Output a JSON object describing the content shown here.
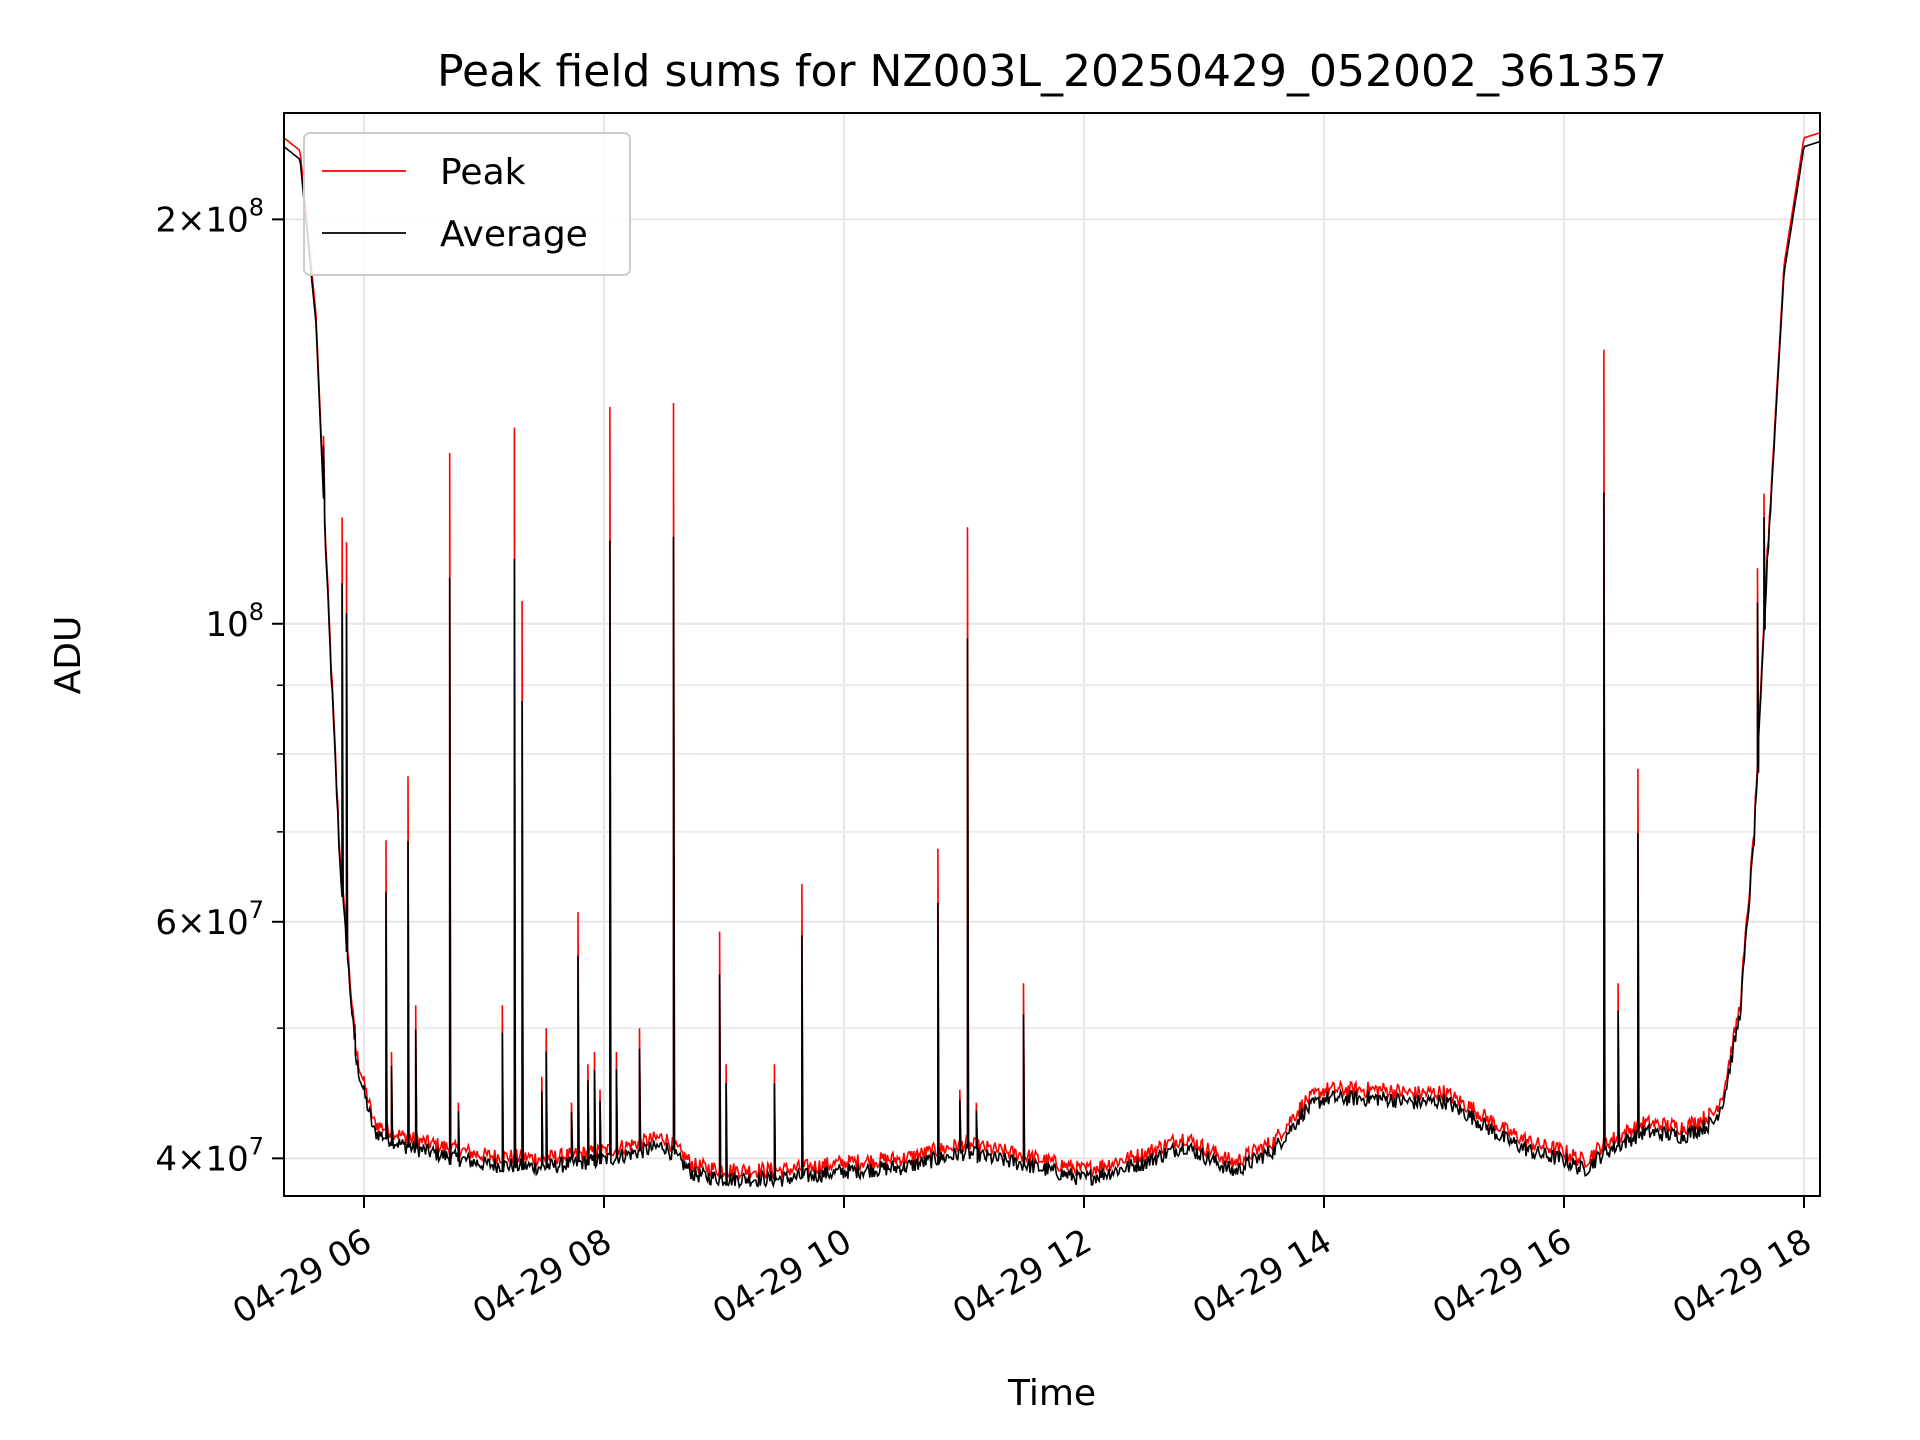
{
  "chart_data": {
    "type": "line",
    "title": "Peak field sums for NZ003L_20250429_052002_361357",
    "xlabel": "Time",
    "ylabel": "ADU",
    "y_scale": "log",
    "ylim": [
      37500000,
      240000000
    ],
    "xlim": [
      "2025-04-29 05:20",
      "2025-04-29 18:08"
    ],
    "grid": true,
    "legend": "top-left",
    "x_ticks": [
      {
        "value": "2025-04-29 06:00",
        "label": "04-29 06"
      },
      {
        "value": "2025-04-29 08:00",
        "label": "04-29 08"
      },
      {
        "value": "2025-04-29 10:00",
        "label": "04-29 10"
      },
      {
        "value": "2025-04-29 12:00",
        "label": "04-29 12"
      },
      {
        "value": "2025-04-29 14:00",
        "label": "04-29 14"
      },
      {
        "value": "2025-04-29 16:00",
        "label": "04-29 16"
      },
      {
        "value": "2025-04-29 18:00",
        "label": "04-29 18"
      }
    ],
    "y_ticks": [
      {
        "value": 40000000,
        "mantissa": "4",
        "exp": "7"
      },
      {
        "value": 60000000,
        "mantissa": "6",
        "exp": "7"
      },
      {
        "value": 100000000,
        "mantissa": "",
        "exp": "8"
      },
      {
        "value": 200000000,
        "mantissa": "2",
        "exp": "8"
      }
    ],
    "y_minor_ticks": [
      50000000,
      70000000,
      80000000,
      90000000
    ],
    "series": [
      {
        "name": "Peak",
        "color": "#ff0000",
        "x": [
          "2025-04-29 05:20",
          "2025-04-29 05:28",
          "2025-04-29 05:36",
          "2025-04-29 05:42",
          "2025-04-29 05:48",
          "2025-04-29 05:56",
          "2025-04-29 06:05",
          "2025-04-29 06:20",
          "2025-04-29 06:40",
          "2025-04-29 07:00",
          "2025-04-29 07:30",
          "2025-04-29 08:00",
          "2025-04-29 08:30",
          "2025-04-29 08:45",
          "2025-04-29 09:00",
          "2025-04-29 09:30",
          "2025-04-29 10:00",
          "2025-04-29 10:30",
          "2025-04-29 11:00",
          "2025-04-29 11:30",
          "2025-04-29 12:00",
          "2025-04-29 12:30",
          "2025-04-29 12:50",
          "2025-04-29 13:15",
          "2025-04-29 13:35",
          "2025-04-29 13:50",
          "2025-04-29 14:00",
          "2025-04-29 14:30",
          "2025-04-29 14:45",
          "2025-04-29 15:00",
          "2025-04-29 15:15",
          "2025-04-29 15:30",
          "2025-04-29 15:45",
          "2025-04-29 16:00",
          "2025-04-29 16:10",
          "2025-04-29 16:20",
          "2025-04-29 16:40",
          "2025-04-29 17:00",
          "2025-04-29 17:15",
          "2025-04-29 17:20",
          "2025-04-29 17:28",
          "2025-04-29 17:35",
          "2025-04-29 17:42",
          "2025-04-29 17:50",
          "2025-04-29 18:00",
          "2025-04-29 18:08"
        ],
        "values": [
          230000000,
          225000000,
          170000000,
          105000000,
          67000000,
          48000000,
          42500000,
          41500000,
          40800000,
          40200000,
          40000000,
          40500000,
          41500000,
          39500000,
          39200000,
          39200000,
          39700000,
          40000000,
          41000000,
          40200000,
          39200000,
          40300000,
          41500000,
          39700000,
          41200000,
          44000000,
          45000000,
          45000000,
          44700000,
          44800000,
          43500000,
          42000000,
          41000000,
          40500000,
          39800000,
          41000000,
          42500000,
          42200000,
          43200000,
          45000000,
          52000000,
          70000000,
          115000000,
          185000000,
          230000000,
          232000000
        ],
        "spikes": [
          {
            "x": "2025-04-29 05:40",
            "y": 138000000
          },
          {
            "x": "2025-04-29 05:49",
            "y": 120000000
          },
          {
            "x": "2025-04-29 05:51",
            "y": 115000000
          },
          {
            "x": "2025-04-29 05:55",
            "y": 49000000
          },
          {
            "x": "2025-04-29 06:11",
            "y": 69000000
          },
          {
            "x": "2025-04-29 06:14",
            "y": 48000000
          },
          {
            "x": "2025-04-29 06:22",
            "y": 77000000
          },
          {
            "x": "2025-04-29 06:26",
            "y": 52000000
          },
          {
            "x": "2025-04-29 06:43",
            "y": 134000000
          },
          {
            "x": "2025-04-29 06:47",
            "y": 44000000
          },
          {
            "x": "2025-04-29 07:09",
            "y": 52000000
          },
          {
            "x": "2025-04-29 07:15",
            "y": 140000000
          },
          {
            "x": "2025-04-29 07:19",
            "y": 104000000
          },
          {
            "x": "2025-04-29 07:29",
            "y": 46000000
          },
          {
            "x": "2025-04-29 07:31",
            "y": 50000000
          },
          {
            "x": "2025-04-29 07:44",
            "y": 44000000
          },
          {
            "x": "2025-04-29 07:47",
            "y": 61000000
          },
          {
            "x": "2025-04-29 07:52",
            "y": 47000000
          },
          {
            "x": "2025-04-29 07:55",
            "y": 48000000
          },
          {
            "x": "2025-04-29 07:58",
            "y": 45000000
          },
          {
            "x": "2025-04-29 08:03",
            "y": 145000000
          },
          {
            "x": "2025-04-29 08:06",
            "y": 48000000
          },
          {
            "x": "2025-04-29 08:18",
            "y": 50000000
          },
          {
            "x": "2025-04-29 08:35",
            "y": 146000000
          },
          {
            "x": "2025-04-29 08:58",
            "y": 59000000
          },
          {
            "x": "2025-04-29 09:01",
            "y": 47000000
          },
          {
            "x": "2025-04-29 09:25",
            "y": 47000000
          },
          {
            "x": "2025-04-29 09:39",
            "y": 64000000
          },
          {
            "x": "2025-04-29 10:47",
            "y": 68000000
          },
          {
            "x": "2025-04-29 10:58",
            "y": 45000000
          },
          {
            "x": "2025-04-29 11:02",
            "y": 118000000
          },
          {
            "x": "2025-04-29 11:06",
            "y": 44000000
          },
          {
            "x": "2025-04-29 11:30",
            "y": 54000000
          },
          {
            "x": "2025-04-29 16:20",
            "y": 160000000
          },
          {
            "x": "2025-04-29 16:27",
            "y": 54000000
          },
          {
            "x": "2025-04-29 16:37",
            "y": 78000000
          },
          {
            "x": "2025-04-29 17:37",
            "y": 110000000
          },
          {
            "x": "2025-04-29 17:40",
            "y": 125000000
          }
        ]
      },
      {
        "name": "Average",
        "color": "#000000",
        "spike_ratio": 0.82,
        "offset": 0.985
      }
    ]
  },
  "legend": {
    "peak_label": "Peak",
    "average_label": "Average"
  }
}
